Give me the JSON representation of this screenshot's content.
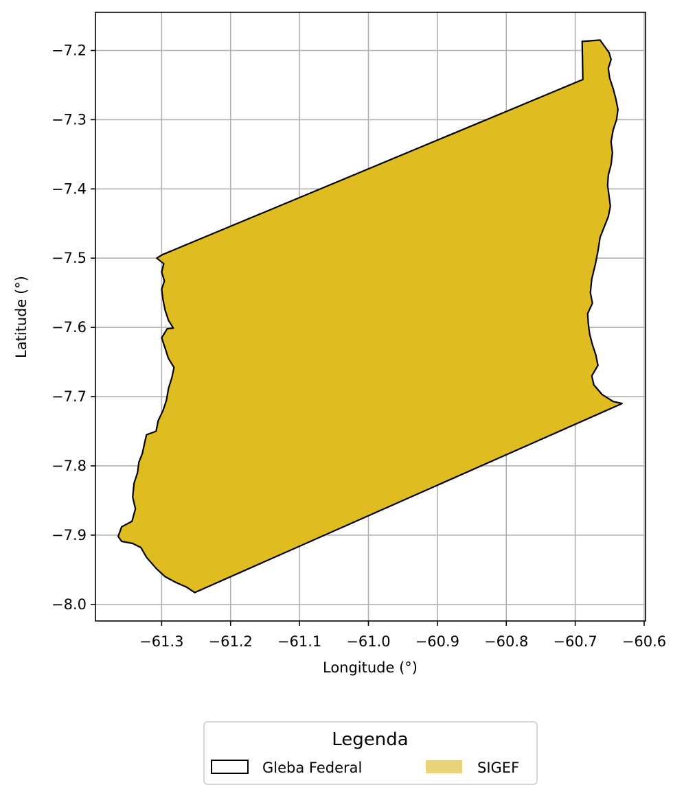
{
  "chart_data": {
    "type": "map",
    "xlabel": "Longitude (°)",
    "ylabel": "Latitude (°)",
    "xlim": [
      -61.396,
      -60.598
    ],
    "ylim": [
      -8.024,
      -7.145
    ],
    "grid": true,
    "x_ticks": [
      {
        "value": -61.3,
        "label": "−61.3"
      },
      {
        "value": -61.2,
        "label": "−61.2"
      },
      {
        "value": -61.1,
        "label": "−61.1"
      },
      {
        "value": -61.0,
        "label": "−61.0"
      },
      {
        "value": -60.9,
        "label": "−60.9"
      },
      {
        "value": -60.8,
        "label": "−60.8"
      },
      {
        "value": -60.7,
        "label": "−60.7"
      },
      {
        "value": -60.6,
        "label": "−60.6"
      }
    ],
    "y_ticks": [
      {
        "value": -7.2,
        "label": "−7.2"
      },
      {
        "value": -7.3,
        "label": "−7.3"
      },
      {
        "value": -7.4,
        "label": "−7.4"
      },
      {
        "value": -7.5,
        "label": "−7.5"
      },
      {
        "value": -7.6,
        "label": "−7.6"
      },
      {
        "value": -7.7,
        "label": "−7.7"
      },
      {
        "value": -7.8,
        "label": "−7.8"
      },
      {
        "value": -7.9,
        "label": "−7.9"
      },
      {
        "value": -8.0,
        "label": "−8.0"
      }
    ],
    "colors": {
      "sigef_fill": "#dfbc20",
      "boundary": "#000000",
      "grid": "#b0b0b0",
      "legend_sigef": "#e8d27a"
    },
    "polygon": {
      "name": "Gleba Federal / SIGEF",
      "coordinates": [
        [
          -61.299,
          -7.495
        ],
        [
          -60.689,
          -7.242
        ],
        [
          -60.69,
          -7.187
        ],
        [
          -60.664,
          -7.185
        ],
        [
          -60.651,
          -7.203
        ],
        [
          -60.648,
          -7.213
        ],
        [
          -60.652,
          -7.226
        ],
        [
          -60.65,
          -7.24
        ],
        [
          -60.645,
          -7.255
        ],
        [
          -60.641,
          -7.27
        ],
        [
          -60.638,
          -7.285
        ],
        [
          -60.64,
          -7.3
        ],
        [
          -60.645,
          -7.315
        ],
        [
          -60.648,
          -7.332
        ],
        [
          -60.646,
          -7.348
        ],
        [
          -60.648,
          -7.365
        ],
        [
          -60.652,
          -7.38
        ],
        [
          -60.653,
          -7.395
        ],
        [
          -60.651,
          -7.41
        ],
        [
          -60.649,
          -7.425
        ],
        [
          -60.652,
          -7.44
        ],
        [
          -60.658,
          -7.455
        ],
        [
          -60.664,
          -7.47
        ],
        [
          -60.667,
          -7.49
        ],
        [
          -60.671,
          -7.51
        ],
        [
          -60.676,
          -7.53
        ],
        [
          -60.678,
          -7.55
        ],
        [
          -60.675,
          -7.565
        ],
        [
          -60.682,
          -7.58
        ],
        [
          -60.681,
          -7.595
        ],
        [
          -60.679,
          -7.61
        ],
        [
          -60.675,
          -7.625
        ],
        [
          -60.67,
          -7.64
        ],
        [
          -60.667,
          -7.655
        ],
        [
          -60.676,
          -7.67
        ],
        [
          -60.673,
          -7.683
        ],
        [
          -60.661,
          -7.697
        ],
        [
          -60.645,
          -7.707
        ],
        [
          -60.632,
          -7.71
        ],
        [
          -61.252,
          -7.983
        ],
        [
          -61.264,
          -7.975
        ],
        [
          -61.28,
          -7.968
        ],
        [
          -61.295,
          -7.96
        ],
        [
          -61.308,
          -7.948
        ],
        [
          -61.322,
          -7.932
        ],
        [
          -61.33,
          -7.918
        ],
        [
          -61.342,
          -7.912
        ],
        [
          -61.358,
          -7.909
        ],
        [
          -61.363,
          -7.902
        ],
        [
          -61.358,
          -7.888
        ],
        [
          -61.343,
          -7.88
        ],
        [
          -61.338,
          -7.862
        ],
        [
          -61.342,
          -7.845
        ],
        [
          -61.34,
          -7.825
        ],
        [
          -61.335,
          -7.81
        ],
        [
          -61.333,
          -7.795
        ],
        [
          -61.328,
          -7.782
        ],
        [
          -61.325,
          -7.768
        ],
        [
          -61.322,
          -7.755
        ],
        [
          -61.308,
          -7.75
        ],
        [
          -61.305,
          -7.735
        ],
        [
          -61.298,
          -7.72
        ],
        [
          -61.293,
          -7.705
        ],
        [
          -61.29,
          -7.688
        ],
        [
          -61.285,
          -7.672
        ],
        [
          -61.282,
          -7.658
        ],
        [
          -61.29,
          -7.645
        ],
        [
          -61.295,
          -7.63
        ],
        [
          -61.3,
          -7.615
        ],
        [
          -61.292,
          -7.602
        ],
        [
          -61.283,
          -7.601
        ],
        [
          -61.29,
          -7.59
        ],
        [
          -61.295,
          -7.575
        ],
        [
          -61.298,
          -7.56
        ],
        [
          -61.3,
          -7.545
        ],
        [
          -61.296,
          -7.533
        ],
        [
          -61.3,
          -7.52
        ],
        [
          -61.297,
          -7.508
        ],
        [
          -61.307,
          -7.5
        ],
        [
          -61.299,
          -7.495
        ]
      ]
    },
    "legend": {
      "title": "Legenda",
      "placement": "bottom-center",
      "entries": [
        {
          "label": "Gleba Federal",
          "style": "outline"
        },
        {
          "label": "SIGEF",
          "style": "fill"
        }
      ]
    }
  }
}
